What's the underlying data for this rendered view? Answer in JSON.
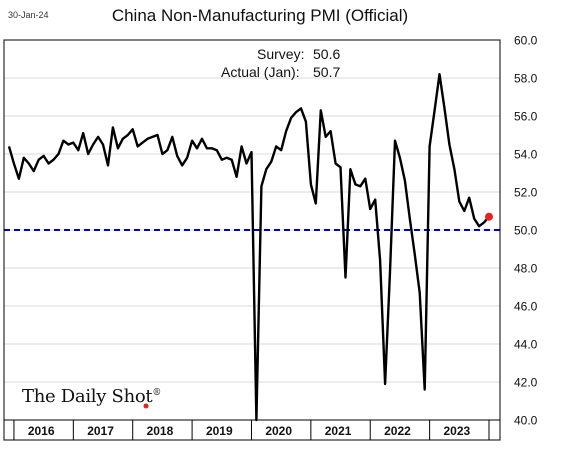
{
  "date_stamp": "30-Jan-24",
  "brand": {
    "name": "The Daily Shot",
    "mark": "®"
  },
  "annotations": {
    "survey_label": "Survey:",
    "survey_value": "50.6",
    "actual_label": "Actual (Jan):",
    "actual_value": "50.7"
  },
  "colors": {
    "line": "#000000",
    "reference": "#0000CC",
    "marker": "#E8211C",
    "grid": "#D9D9D9"
  },
  "chart_data": {
    "type": "line",
    "title": "China Non-Manufacturing PMI (Official)",
    "xlabel": "",
    "ylabel": "",
    "x_start": "2015-12",
    "x_end": "2024-01",
    "ylim": [
      40,
      60
    ],
    "yticks": [
      "40.0",
      "42.0",
      "44.0",
      "46.0",
      "48.0",
      "50.0",
      "52.0",
      "54.0",
      "56.0",
      "58.0",
      "60.0"
    ],
    "y_axis_side": "right",
    "grid": true,
    "year_labels": [
      "2016",
      "2017",
      "2018",
      "2019",
      "2020",
      "2021",
      "2022",
      "2023"
    ],
    "reference_line": {
      "y": 50,
      "style": "dashed"
    },
    "highlight_point": {
      "x": "2024-01",
      "y": 50.7
    },
    "series": [
      {
        "x": [
          "2015-12",
          "2016-01",
          "2016-02",
          "2016-03",
          "2016-04",
          "2016-05",
          "2016-06",
          "2016-07",
          "2016-08",
          "2016-09",
          "2016-10",
          "2016-11",
          "2016-12",
          "2017-01",
          "2017-02",
          "2017-03",
          "2017-04",
          "2017-05",
          "2017-06",
          "2017-07",
          "2017-08",
          "2017-09",
          "2017-10",
          "2017-11",
          "2017-12",
          "2018-01",
          "2018-02",
          "2018-03",
          "2018-04",
          "2018-05",
          "2018-06",
          "2018-07",
          "2018-08",
          "2018-09",
          "2018-10",
          "2018-11",
          "2018-12",
          "2019-01",
          "2019-02",
          "2019-03",
          "2019-04",
          "2019-05",
          "2019-06",
          "2019-07",
          "2019-08",
          "2019-09",
          "2019-10",
          "2019-11",
          "2019-12",
          "2020-01",
          "2020-02",
          "2020-03",
          "2020-04",
          "2020-05",
          "2020-06",
          "2020-07",
          "2020-08",
          "2020-09",
          "2020-10",
          "2020-11",
          "2020-12",
          "2021-01",
          "2021-02",
          "2021-03",
          "2021-04",
          "2021-05",
          "2021-06",
          "2021-07",
          "2021-08",
          "2021-09",
          "2021-10",
          "2021-11",
          "2021-12",
          "2022-01",
          "2022-02",
          "2022-03",
          "2022-04",
          "2022-05",
          "2022-06",
          "2022-07",
          "2022-08",
          "2022-09",
          "2022-10",
          "2022-11",
          "2022-12",
          "2023-01",
          "2023-02",
          "2023-03",
          "2023-04",
          "2023-05",
          "2023-06",
          "2023-07",
          "2023-08",
          "2023-09",
          "2023-10",
          "2023-11",
          "2023-12",
          "2024-01"
        ],
        "values": [
          54.4,
          53.5,
          52.7,
          53.8,
          53.5,
          53.1,
          53.7,
          53.9,
          53.5,
          53.7,
          54.0,
          54.7,
          54.5,
          54.6,
          54.2,
          55.1,
          54.0,
          54.5,
          54.9,
          54.5,
          53.4,
          55.4,
          54.3,
          54.8,
          55.0,
          55.3,
          54.4,
          54.6,
          54.8,
          54.9,
          55.0,
          54.0,
          54.2,
          54.9,
          53.9,
          53.4,
          53.8,
          54.7,
          54.3,
          54.8,
          54.3,
          54.3,
          54.2,
          53.7,
          53.8,
          53.7,
          52.8,
          54.4,
          53.5,
          54.1,
          29.6,
          52.3,
          53.2,
          53.6,
          54.4,
          54.2,
          55.2,
          55.9,
          56.2,
          56.4,
          55.7,
          52.4,
          51.4,
          56.3,
          54.9,
          55.2,
          53.5,
          53.3,
          47.5,
          53.2,
          52.4,
          52.3,
          52.7,
          51.1,
          51.6,
          48.4,
          41.9,
          47.8,
          54.7,
          53.8,
          52.6,
          50.6,
          48.7,
          46.7,
          41.6,
          54.4,
          56.3,
          58.2,
          56.4,
          54.5,
          53.2,
          51.5,
          51.0,
          51.7,
          50.6,
          50.2,
          50.4,
          50.7
        ]
      }
    ]
  }
}
